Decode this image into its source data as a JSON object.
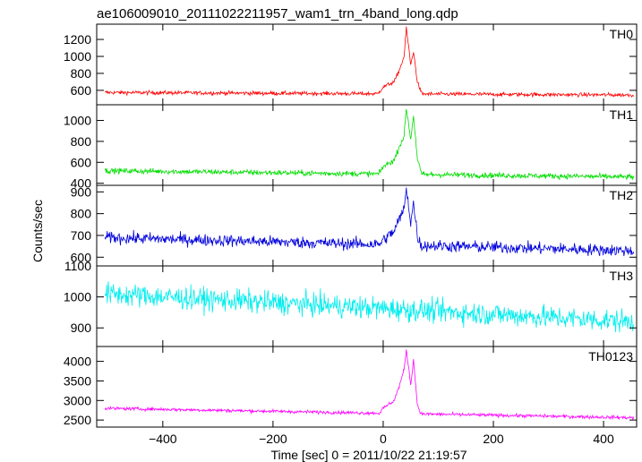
{
  "chart_data": {
    "type": "line",
    "title": "ae106009010_20111022211957_wam1_trn_4band_long.qdp",
    "xlabel": "Time [sec] 0 = 2011/10/22 21:19:57",
    "ylabel": "Counts/sec",
    "xlim": [
      -520,
      460
    ],
    "x_ticks": [
      -400,
      -200,
      0,
      200,
      400
    ],
    "grid": false,
    "panels": [
      {
        "name": "TH0",
        "color": "#ff0000",
        "ylim": [
          430,
          1380
        ],
        "y_ticks": [
          600,
          800,
          1000,
          1200
        ],
        "series_shape": {
          "pre_level_start": 575,
          "pre_level_end": 545,
          "noise": 22,
          "burst": {
            "t": [
              -10,
              0,
              20,
              30,
              38,
              42,
              50,
              55,
              62,
              70
            ],
            "v": [
              560,
              640,
              700,
              850,
              1000,
              1340,
              900,
              1060,
              700,
              560
            ]
          }
        }
      },
      {
        "name": "TH1",
        "color": "#00dd00",
        "ylim": [
          380,
          1150
        ],
        "y_ticks": [
          400,
          600,
          800,
          1000
        ],
        "series_shape": {
          "pre_level_start": 520,
          "pre_level_end": 460,
          "noise": 25,
          "burst": {
            "t": [
              -10,
              0,
              20,
              30,
              38,
              42,
              50,
              55,
              62,
              70
            ],
            "v": [
              470,
              560,
              620,
              760,
              850,
              1120,
              820,
              1050,
              640,
              480
            ]
          }
        }
      },
      {
        "name": "TH2",
        "color": "#0000dd",
        "ylim": [
          560,
          930
        ],
        "y_ticks": [
          600,
          700,
          800,
          900
        ],
        "series_shape": {
          "pre_level_start": 690,
          "pre_level_end": 630,
          "noise": 26,
          "burst": {
            "t": [
              -10,
              0,
              20,
              30,
              38,
              42,
              50,
              55,
              62,
              70
            ],
            "v": [
              650,
              680,
              720,
              780,
              820,
              920,
              760,
              850,
              700,
              640
            ]
          }
        }
      },
      {
        "name": "TH3",
        "color": "#00eeee",
        "ylim": [
          840,
          1100
        ],
        "y_ticks": [
          900,
          1000,
          1100
        ],
        "series_shape": {
          "pre_level_start": 1010,
          "pre_level_end": 920,
          "noise": 35,
          "burst": {
            "t": [
              0,
              1
            ],
            "v": [
              960,
              960
            ]
          }
        }
      },
      {
        "name": "TH0123",
        "color": "#ff00ff",
        "ylim": [
          2320,
          4380
        ],
        "y_ticks": [
          2500,
          3000,
          3500,
          4000
        ],
        "series_shape": {
          "pre_level_start": 2800,
          "pre_level_end": 2560,
          "noise": 40,
          "burst": {
            "t": [
              -10,
              0,
              20,
              30,
              38,
              42,
              50,
              55,
              62,
              70
            ],
            "v": [
              2620,
              2800,
              3000,
              3400,
              3800,
              4300,
              3400,
              4050,
              2900,
              2600
            ]
          }
        }
      }
    ]
  }
}
